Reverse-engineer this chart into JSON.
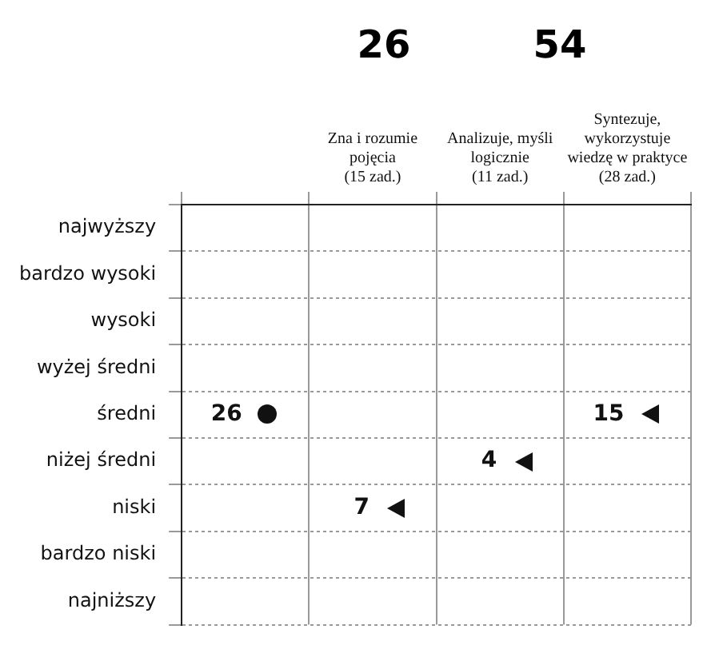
{
  "chart_data": {
    "type": "heatmap",
    "annotations": [
      "26",
      "54"
    ],
    "categories": [
      null,
      "Zna i rozumie pojęcia (15 zad.)",
      "Analizuje, myśli logicznie (11 zad.)",
      "Syntezuje, wykorzystuje wiedzę w praktyce (28 zad.)"
    ],
    "y_categories": [
      "najwyższy",
      "bardzo wysoki",
      "wysoki",
      "wyżej średni",
      "średni",
      "niżej średni",
      "niski",
      "bardzo niski",
      "najniższy"
    ],
    "cells": [
      [
        null,
        null,
        null,
        null
      ],
      [
        null,
        null,
        null,
        null
      ],
      [
        null,
        null,
        null,
        null
      ],
      [
        null,
        null,
        null,
        null
      ],
      [
        26,
        null,
        null,
        15
      ],
      [
        null,
        null,
        4,
        null
      ],
      [
        null,
        7,
        null,
        null
      ],
      [
        null,
        null,
        null,
        null
      ],
      [
        null,
        null,
        null,
        null
      ]
    ],
    "data_labels": true,
    "grid": true
  }
}
